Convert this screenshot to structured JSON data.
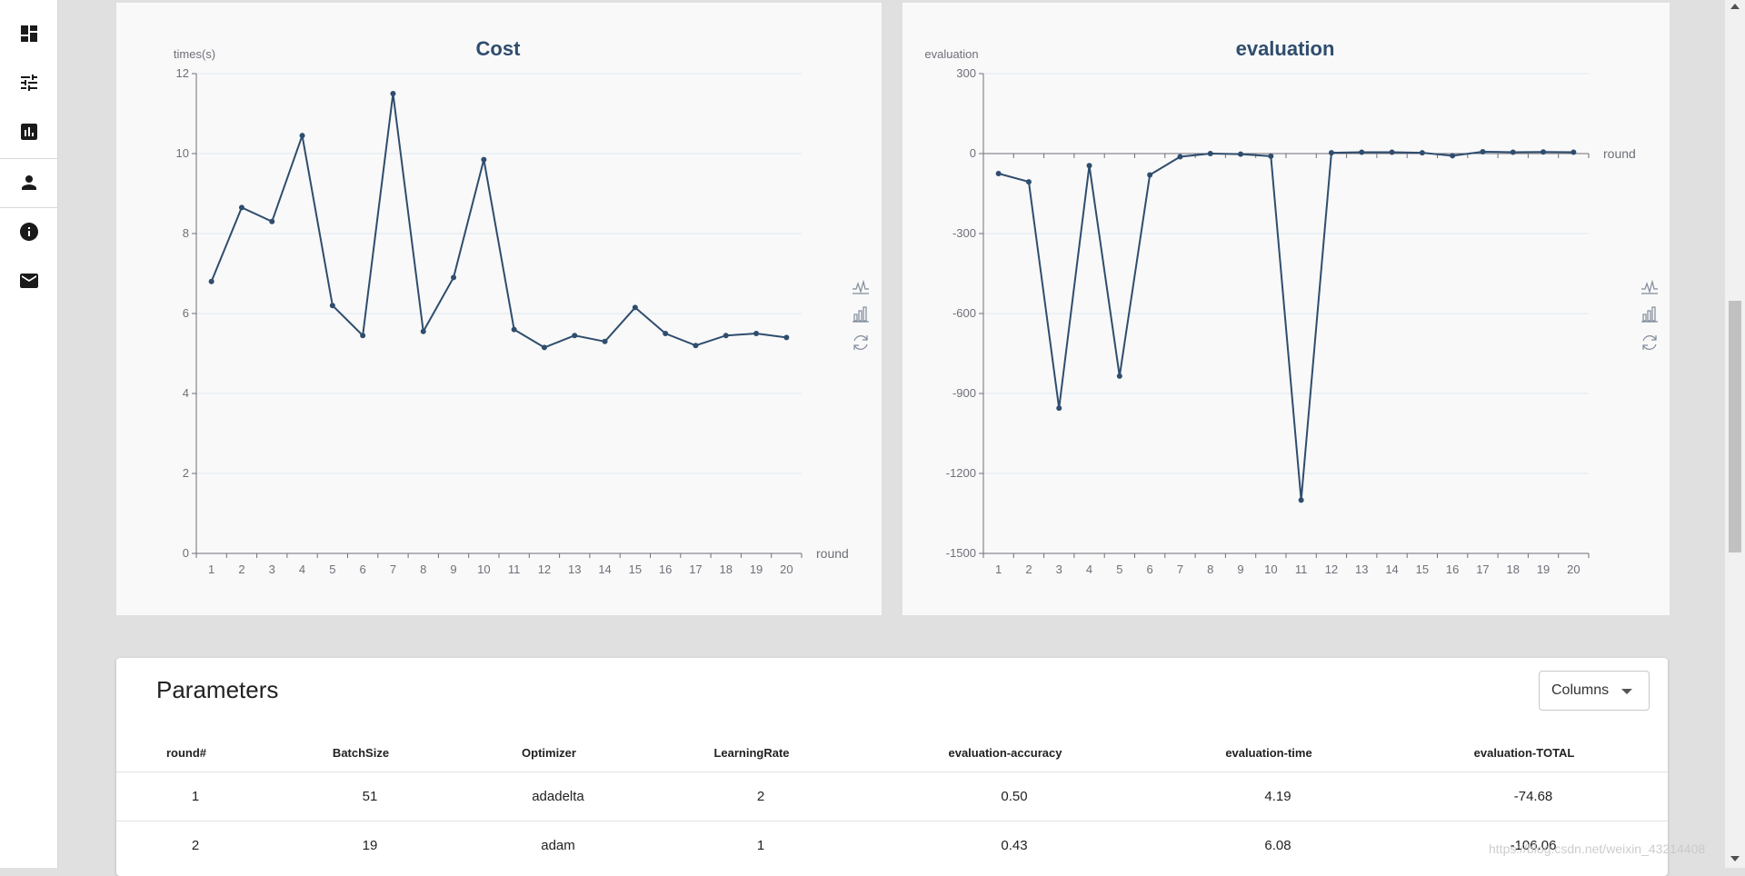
{
  "sidebar": {
    "items": [
      {
        "icon": "dashboard-icon"
      },
      {
        "icon": "tune-icon"
      },
      {
        "icon": "assessment-icon"
      },
      {
        "icon": "person-icon"
      },
      {
        "icon": "info-icon"
      },
      {
        "icon": "mail-icon"
      }
    ]
  },
  "toolbox": {
    "icons": [
      "line-chart-icon",
      "bar-chart-icon",
      "restore-icon"
    ]
  },
  "colors": {
    "series": "#2f4d6e",
    "axis": "#6e7079",
    "grid": "#e0e6f1"
  },
  "chart_data": [
    {
      "type": "line",
      "title": "Cost",
      "ylabel": "times(s)",
      "xlabel": "round",
      "x": [
        1,
        2,
        3,
        4,
        5,
        6,
        7,
        8,
        9,
        10,
        11,
        12,
        13,
        14,
        15,
        16,
        17,
        18,
        19,
        20
      ],
      "ylim": [
        0,
        12
      ],
      "yticks": [
        0,
        2,
        4,
        6,
        8,
        10,
        12
      ],
      "series": [
        {
          "values": [
            6.8,
            8.65,
            8.3,
            10.45,
            6.2,
            5.45,
            11.5,
            5.55,
            6.9,
            9.85,
            5.6,
            5.15,
            5.45,
            5.3,
            6.15,
            5.5,
            5.2,
            5.45,
            5.5,
            5.4
          ]
        }
      ],
      "grid": true
    },
    {
      "type": "line",
      "title": "evaluation",
      "ylabel": "evaluation",
      "xlabel": "round",
      "x": [
        1,
        2,
        3,
        4,
        5,
        6,
        7,
        8,
        9,
        10,
        11,
        12,
        13,
        14,
        15,
        16,
        17,
        18,
        19,
        20
      ],
      "ylim": [
        -1500,
        300
      ],
      "yticks": [
        -1500,
        -1200,
        -900,
        -600,
        -300,
        0,
        300
      ],
      "series": [
        {
          "values": [
            -75,
            -106,
            -955,
            -45,
            -835,
            -80,
            -12,
            0,
            -2,
            -10,
            -1300,
            3,
            5,
            5,
            3,
            -8,
            7,
            5,
            6,
            5
          ]
        }
      ],
      "grid": true
    }
  ],
  "table": {
    "title": "Parameters",
    "columns_button": "Columns",
    "headers": [
      "round#",
      "BatchSize",
      "Optimizer",
      "LearningRate",
      "evaluation-accuracy",
      "evaluation-time",
      "evaluation-TOTAL"
    ],
    "rows": [
      [
        "1",
        "51",
        "adadelta",
        "2",
        "0.50",
        "4.19",
        "-74.68"
      ],
      [
        "2",
        "19",
        "adam",
        "1",
        "0.43",
        "6.08",
        "-106.06"
      ]
    ]
  },
  "watermark": "https://blog.csdn.net/weixin_43214408"
}
